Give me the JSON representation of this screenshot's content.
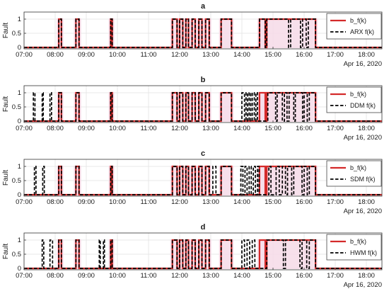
{
  "colors": {
    "reference_line": "#d42a2a",
    "reference_band": "#f6dbe7",
    "estimate_line": "#000000",
    "grid": "#e1e1e1",
    "axes": "#333333"
  },
  "chart_data": [
    {
      "type": "line",
      "title": "a",
      "ylabel": "Fault",
      "xlim": [
        "07:00",
        "18:30"
      ],
      "ylim": [
        0,
        1
      ],
      "x_tick_labels": [
        "07:00",
        "08:00",
        "09:00",
        "10:00",
        "11:00",
        "12:00",
        "13:00",
        "14:00",
        "15:00",
        "16:00",
        "17:00",
        "18:00"
      ],
      "y_tick_labels": [
        "0",
        "0.5",
        "1"
      ],
      "date_label": "Apr 16, 2020",
      "grid": true,
      "legend": "top-right",
      "series": [
        {
          "name": "b_f(k)",
          "style": "solid",
          "pulses": [
            [
              "08:07",
              "08:12"
            ],
            [
              "08:40",
              "08:46"
            ],
            [
              "09:47",
              "09:50"
            ],
            [
              "11:46",
              "11:55"
            ],
            [
              "12:00",
              "12:06"
            ],
            [
              "12:12",
              "12:17"
            ],
            [
              "12:24",
              "12:30"
            ],
            [
              "12:37",
              "12:43"
            ],
            [
              "12:50",
              "12:57"
            ],
            [
              "13:20",
              "13:40"
            ],
            [
              "14:34",
              "14:45"
            ],
            [
              "14:48",
              "16:22"
            ]
          ]
        },
        {
          "name": "ARX f(k)",
          "style": "dashed",
          "pulses": [
            [
              "08:07",
              "08:12"
            ],
            [
              "08:40",
              "08:46"
            ],
            [
              "09:47",
              "09:50"
            ],
            [
              "11:46",
              "11:55"
            ],
            [
              "12:00",
              "12:06"
            ],
            [
              "12:12",
              "12:17"
            ],
            [
              "12:24",
              "12:30"
            ],
            [
              "12:37",
              "12:43"
            ],
            [
              "12:50",
              "12:57"
            ],
            [
              "13:20",
              "13:40"
            ],
            [
              "14:34",
              "14:45"
            ],
            [
              "14:48",
              "15:30"
            ],
            [
              "15:34",
              "15:53"
            ],
            [
              "15:57",
              "16:04"
            ],
            [
              "16:08",
              "16:22"
            ]
          ]
        }
      ]
    },
    {
      "type": "line",
      "title": "b",
      "ylabel": "Fault",
      "xlim": [
        "07:00",
        "18:30"
      ],
      "ylim": [
        0,
        1
      ],
      "x_tick_labels": [
        "07:00",
        "08:00",
        "09:00",
        "10:00",
        "11:00",
        "12:00",
        "13:00",
        "14:00",
        "15:00",
        "16:00",
        "17:00",
        "18:00"
      ],
      "y_tick_labels": [
        "0",
        "0.5",
        "1"
      ],
      "date_label": "Apr 16, 2020",
      "grid": true,
      "legend": "top-right",
      "series": [
        {
          "name": "b_f(k)",
          "style": "solid",
          "pulses": [
            [
              "08:07",
              "08:12"
            ],
            [
              "08:40",
              "08:46"
            ],
            [
              "09:47",
              "09:50"
            ],
            [
              "11:46",
              "11:55"
            ],
            [
              "12:00",
              "12:06"
            ],
            [
              "12:12",
              "12:17"
            ],
            [
              "12:24",
              "12:30"
            ],
            [
              "12:37",
              "12:43"
            ],
            [
              "12:50",
              "12:57"
            ],
            [
              "13:20",
              "13:40"
            ],
            [
              "14:34",
              "14:45"
            ],
            [
              "14:48",
              "16:22"
            ]
          ]
        },
        {
          "name": "DDM f(k)",
          "style": "dashed",
          "pulses": [
            [
              "07:18",
              "07:21"
            ],
            [
              "07:35",
              "07:37"
            ],
            [
              "07:50",
              "07:53"
            ],
            [
              "08:07",
              "08:12"
            ],
            [
              "08:40",
              "08:46"
            ],
            [
              "09:47",
              "09:50"
            ],
            [
              "11:46",
              "11:55"
            ],
            [
              "12:00",
              "12:06"
            ],
            [
              "12:12",
              "12:17"
            ],
            [
              "12:24",
              "12:30"
            ],
            [
              "12:37",
              "12:43"
            ],
            [
              "12:50",
              "12:57"
            ],
            [
              "13:20",
              "13:40"
            ],
            [
              "14:00",
              "14:05"
            ],
            [
              "14:08",
              "14:11"
            ],
            [
              "14:14",
              "14:17"
            ],
            [
              "14:20",
              "14:24"
            ],
            [
              "14:27",
              "14:30"
            ],
            [
              "14:50",
              "15:05"
            ],
            [
              "15:08",
              "15:18"
            ],
            [
              "15:22",
              "15:27"
            ],
            [
              "15:31",
              "15:40"
            ],
            [
              "15:43",
              "15:57"
            ],
            [
              "16:00",
              "16:06"
            ],
            [
              "16:10",
              "16:22"
            ]
          ]
        }
      ]
    },
    {
      "type": "line",
      "title": "c",
      "ylabel": "Fault",
      "xlim": [
        "07:00",
        "18:30"
      ],
      "ylim": [
        0,
        1
      ],
      "x_tick_labels": [
        "07:00",
        "08:00",
        "09:00",
        "10:00",
        "11:00",
        "12:00",
        "13:00",
        "14:00",
        "15:00",
        "16:00",
        "17:00",
        "18:00"
      ],
      "y_tick_labels": [
        "0",
        "0.5",
        "1"
      ],
      "date_label": "Apr 16, 2020",
      "grid": true,
      "legend": "top-right",
      "series": [
        {
          "name": "b_f(k)",
          "style": "solid",
          "pulses": [
            [
              "08:07",
              "08:12"
            ],
            [
              "08:40",
              "08:46"
            ],
            [
              "09:47",
              "09:50"
            ],
            [
              "11:46",
              "11:55"
            ],
            [
              "12:00",
              "12:06"
            ],
            [
              "12:12",
              "12:17"
            ],
            [
              "12:24",
              "12:30"
            ],
            [
              "12:37",
              "12:43"
            ],
            [
              "12:50",
              "12:57"
            ],
            [
              "13:20",
              "13:40"
            ],
            [
              "14:34",
              "14:45"
            ],
            [
              "14:48",
              "16:22"
            ]
          ]
        },
        {
          "name": "SDM f(k)",
          "style": "dashed",
          "pulses": [
            [
              "07:20",
              "07:23"
            ],
            [
              "07:36",
              "07:39"
            ],
            [
              "08:07",
              "08:12"
            ],
            [
              "08:40",
              "08:46"
            ],
            [
              "09:47",
              "09:50"
            ],
            [
              "11:46",
              "11:55"
            ],
            [
              "12:00",
              "12:06"
            ],
            [
              "12:12",
              "12:17"
            ],
            [
              "12:24",
              "12:30"
            ],
            [
              "12:37",
              "12:43"
            ],
            [
              "12:50",
              "12:57"
            ],
            [
              "13:04",
              "13:10"
            ],
            [
              "13:20",
              "13:40"
            ],
            [
              "13:58",
              "14:02"
            ],
            [
              "14:06",
              "14:10"
            ],
            [
              "14:14",
              "14:18"
            ],
            [
              "14:22",
              "14:26"
            ],
            [
              "14:30",
              "14:33"
            ],
            [
              "14:52",
              "14:56"
            ],
            [
              "15:06",
              "15:12"
            ],
            [
              "15:18",
              "15:24"
            ],
            [
              "15:28",
              "15:36"
            ],
            [
              "15:40",
              "15:56"
            ],
            [
              "16:00",
              "16:06"
            ],
            [
              "16:10",
              "16:22"
            ]
          ]
        }
      ]
    },
    {
      "type": "line",
      "title": "d",
      "ylabel": "Fault",
      "xlim": [
        "07:00",
        "18:30"
      ],
      "ylim": [
        0,
        1
      ],
      "x_tick_labels": [
        "07:00",
        "08:00",
        "09:00",
        "10:00",
        "11:00",
        "12:00",
        "13:00",
        "14:00",
        "15:00",
        "16:00",
        "17:00",
        "18:00"
      ],
      "y_tick_labels": [
        "0",
        "0.5",
        "1"
      ],
      "date_label": "Apr 16, 2020",
      "grid": true,
      "legend": "top-right",
      "series": [
        {
          "name": "b_f(k)",
          "style": "solid",
          "pulses": [
            [
              "08:07",
              "08:12"
            ],
            [
              "08:40",
              "08:46"
            ],
            [
              "09:47",
              "09:50"
            ],
            [
              "11:46",
              "11:55"
            ],
            [
              "12:00",
              "12:06"
            ],
            [
              "12:12",
              "12:17"
            ],
            [
              "12:24",
              "12:30"
            ],
            [
              "12:37",
              "12:43"
            ],
            [
              "12:50",
              "12:57"
            ],
            [
              "13:20",
              "13:40"
            ],
            [
              "14:34",
              "14:45"
            ],
            [
              "14:48",
              "16:22"
            ]
          ]
        },
        {
          "name": "HWM f(k)",
          "style": "dashed",
          "pulses": [
            [
              "07:35",
              "07:38"
            ],
            [
              "07:50",
              "07:55"
            ],
            [
              "08:07",
              "08:12"
            ],
            [
              "08:40",
              "08:46"
            ],
            [
              "09:25",
              "09:27"
            ],
            [
              "09:33",
              "09:35"
            ],
            [
              "09:47",
              "09:50"
            ],
            [
              "11:46",
              "11:55"
            ],
            [
              "12:00",
              "12:06"
            ],
            [
              "12:12",
              "12:17"
            ],
            [
              "12:24",
              "12:30"
            ],
            [
              "12:37",
              "12:43"
            ],
            [
              "12:50",
              "12:57"
            ],
            [
              "13:20",
              "13:40"
            ],
            [
              "14:00",
              "14:05"
            ],
            [
              "14:10",
              "14:15"
            ],
            [
              "14:20",
              "14:25"
            ],
            [
              "14:48",
              "15:20"
            ],
            [
              "15:24",
              "15:52"
            ],
            [
              "15:56",
              "16:05"
            ],
            [
              "16:10",
              "16:22"
            ]
          ]
        }
      ]
    }
  ]
}
